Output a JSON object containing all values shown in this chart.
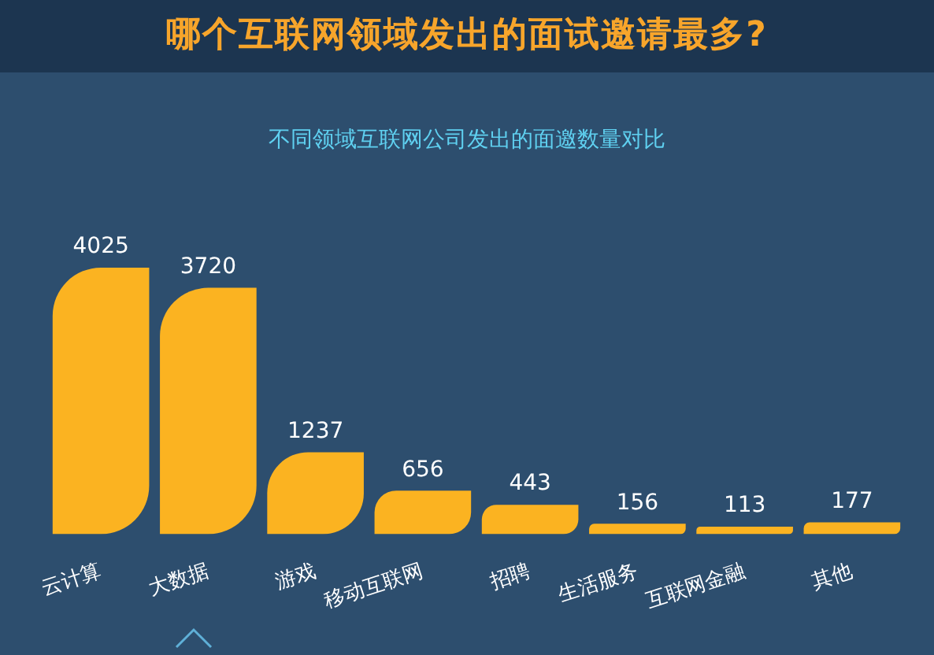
{
  "chart_data": {
    "type": "bar",
    "title": "哪个互联网领域发出的面试邀请最多?",
    "subtitle": "不同领域互联网公司发出的面邀数量对比",
    "categories": [
      "云计算",
      "大数据",
      "游戏",
      "移动互联网",
      "招聘",
      "生活服务",
      "互联网金融",
      "其他"
    ],
    "values": [
      4025,
      3720,
      1237,
      656,
      443,
      156,
      113,
      177
    ],
    "color": "#fbb321",
    "data_labels": true,
    "grid": false,
    "legend": false
  }
}
